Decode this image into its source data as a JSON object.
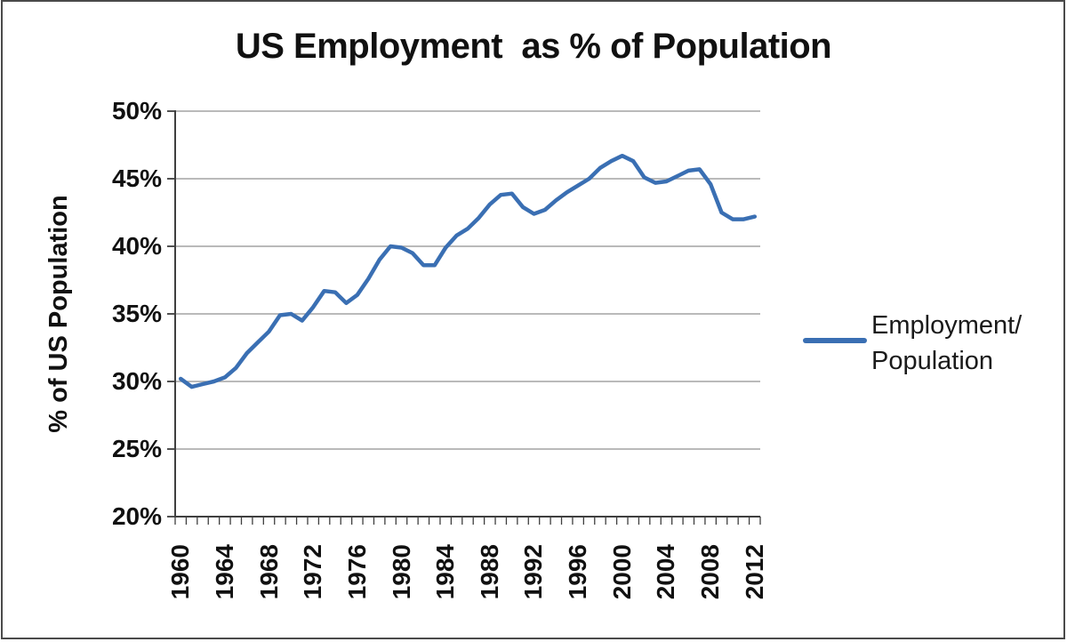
{
  "chart": {
    "title": "US Employment  as % of Population",
    "colors": {
      "line": "#3A6FB3",
      "gridline": "#A3A3A3",
      "axis": "#3F3F3F",
      "text": "#111111"
    }
  },
  "legend": {
    "line1": "Employment/",
    "line2": "Population"
  },
  "chart_data": {
    "type": "line",
    "title": "US Employment  as % of Population",
    "xlabel": "",
    "ylabel": "% of US Population",
    "ylim": [
      20,
      50
    ],
    "y_tick_step": 5,
    "y_tick_labels": [
      "50%",
      "45%",
      "40%",
      "35%",
      "30%",
      "25%",
      "20%"
    ],
    "x_tick_labels": [
      "1960",
      "1964",
      "1968",
      "1972",
      "1976",
      "1980",
      "1984",
      "1988",
      "1992",
      "1996",
      "2000",
      "2004",
      "2008",
      "2012"
    ],
    "grid": true,
    "legend_position": "right",
    "x": [
      1960,
      1961,
      1962,
      1963,
      1964,
      1965,
      1966,
      1967,
      1968,
      1969,
      1970,
      1971,
      1972,
      1973,
      1974,
      1975,
      1976,
      1977,
      1978,
      1979,
      1980,
      1981,
      1982,
      1983,
      1984,
      1985,
      1986,
      1987,
      1988,
      1989,
      1990,
      1991,
      1992,
      1993,
      1994,
      1995,
      1996,
      1997,
      1998,
      1999,
      2000,
      2001,
      2002,
      2003,
      2004,
      2005,
      2006,
      2007,
      2008,
      2009,
      2010,
      2011,
      2012
    ],
    "series": [
      {
        "name": "Employment/Population",
        "values": [
          30.2,
          29.6,
          29.8,
          30.0,
          30.3,
          31.0,
          32.1,
          32.9,
          33.7,
          34.9,
          35.0,
          34.5,
          35.5,
          36.7,
          36.6,
          35.8,
          36.4,
          37.6,
          39.0,
          40.0,
          39.9,
          39.5,
          38.6,
          38.6,
          39.9,
          40.8,
          41.3,
          42.1,
          43.1,
          43.8,
          43.9,
          42.9,
          42.4,
          42.7,
          43.4,
          44.0,
          44.5,
          45.0,
          45.8,
          46.3,
          46.7,
          46.3,
          45.1,
          44.7,
          44.8,
          45.2,
          45.6,
          45.7,
          44.6,
          42.5,
          42.0,
          42.0,
          42.2
        ]
      }
    ]
  }
}
